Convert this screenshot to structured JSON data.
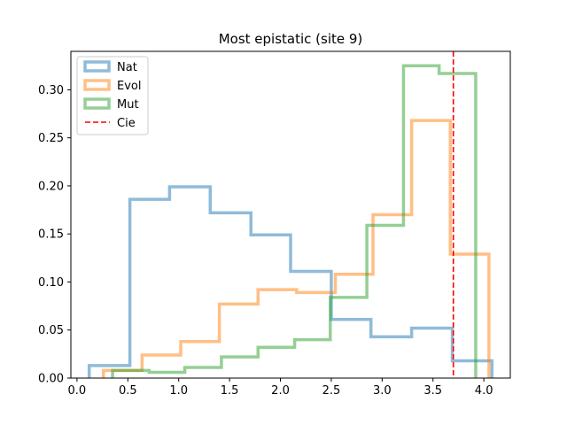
{
  "chart_data": {
    "type": "histogram-step",
    "title": "Most epistatic (site 9)",
    "xlabel": "",
    "ylabel": "",
    "xlim": [
      -0.06,
      4.26
    ],
    "ylim": [
      0,
      0.34
    ],
    "xticks": [
      0.0,
      0.5,
      1.0,
      1.5,
      2.0,
      2.5,
      3.0,
      3.5,
      4.0
    ],
    "xtick_labels": [
      "0.0",
      "0.5",
      "1.0",
      "1.5",
      "2.0",
      "2.5",
      "3.0",
      "3.5",
      "4.0"
    ],
    "yticks": [
      0.0,
      0.05,
      0.1,
      0.15,
      0.2,
      0.25,
      0.3
    ],
    "ytick_labels": [
      "0.00",
      "0.05",
      "0.10",
      "0.15",
      "0.20",
      "0.25",
      "0.30"
    ],
    "legend_position": "upper-left",
    "grid": false,
    "series": [
      {
        "name": "Nat",
        "color": "#1f77b4",
        "edges": [
          0.12,
          0.52,
          0.91,
          1.31,
          1.71,
          2.1,
          2.5,
          2.89,
          3.29,
          3.69,
          4.08
        ],
        "values": [
          0.013,
          0.186,
          0.199,
          0.172,
          0.149,
          0.111,
          0.061,
          0.043,
          0.052,
          0.018
        ]
      },
      {
        "name": "Evol",
        "color": "#ff7f0e",
        "edges": [
          0.26,
          0.64,
          1.02,
          1.4,
          1.78,
          2.16,
          2.54,
          2.91,
          3.29,
          3.67,
          4.05
        ],
        "values": [
          0.008,
          0.024,
          0.038,
          0.077,
          0.092,
          0.089,
          0.108,
          0.17,
          0.268,
          0.129
        ]
      },
      {
        "name": "Mut",
        "color": "#2ca02c",
        "edges": [
          0.35,
          0.71,
          1.06,
          1.42,
          1.78,
          2.14,
          2.49,
          2.85,
          3.21,
          3.56,
          3.92
        ],
        "values": [
          0.008,
          0.006,
          0.011,
          0.022,
          0.032,
          0.04,
          0.084,
          0.159,
          0.325,
          0.317
        ]
      }
    ],
    "reference_line": {
      "name": "Cie",
      "x": 3.7,
      "color": "#ff0000",
      "style": "dashed"
    }
  }
}
